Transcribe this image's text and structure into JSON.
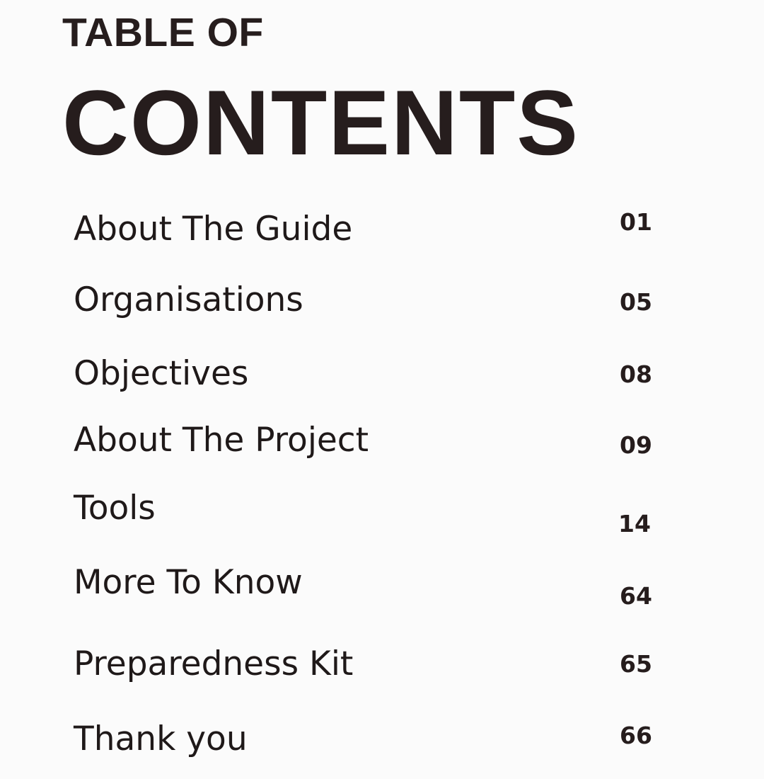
{
  "title": {
    "line1": "TABLE OF",
    "line2": "CONTENTS"
  },
  "toc": [
    {
      "label": "About The Guide",
      "page": "01"
    },
    {
      "label": "Organisations",
      "page": "05"
    },
    {
      "label": "Objectives",
      "page": "08"
    },
    {
      "label": "About The Project",
      "page": "09"
    },
    {
      "label": "Tools",
      "page": "14"
    },
    {
      "label": "More To Know",
      "page": "64"
    },
    {
      "label": "Preparedness Kit",
      "page": "65"
    },
    {
      "label": "Thank you",
      "page": "66"
    }
  ],
  "colors": {
    "text": "#261d1d",
    "background": "#fbfbfb"
  }
}
